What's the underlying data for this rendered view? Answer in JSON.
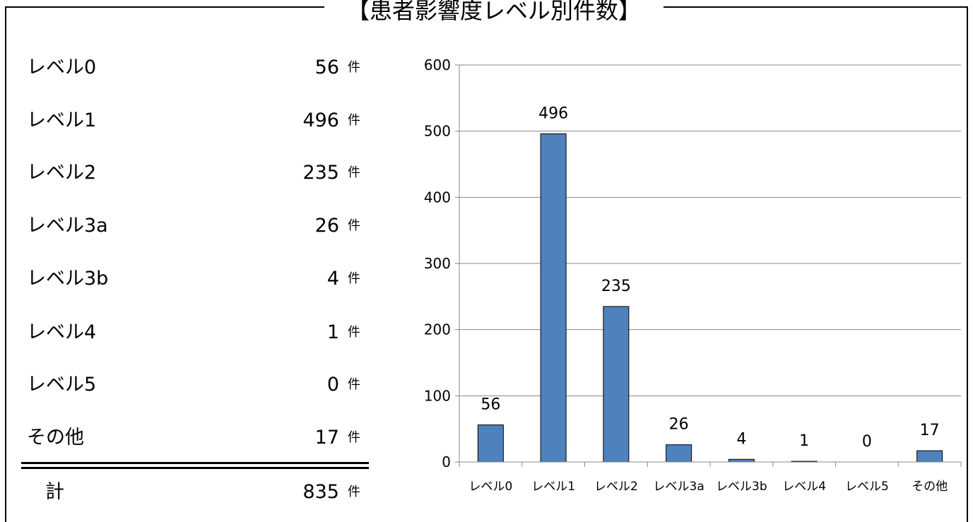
{
  "title": "【患者影響度レベル別件数】",
  "table": {
    "unit": "件",
    "rows": [
      {
        "label": "レベル0",
        "value": "56"
      },
      {
        "label": "レベル1",
        "value": "496"
      },
      {
        "label": "レベル2",
        "value": "235"
      },
      {
        "label": "レベル3a",
        "value": "26"
      },
      {
        "label": "レベル3b",
        "value": "4"
      },
      {
        "label": "レベル4",
        "value": "1"
      },
      {
        "label": "レベル5",
        "value": "0"
      },
      {
        "label": "その他",
        "value": "17"
      }
    ],
    "total_label": "計",
    "total_value": "835"
  },
  "chart_data": {
    "type": "bar",
    "title": "",
    "xlabel": "",
    "ylabel": "",
    "categories": [
      "レベル0",
      "レベル1",
      "レベル2",
      "レベル3a",
      "レベル3b",
      "レベル4",
      "レベル5",
      "その他"
    ],
    "values": [
      56,
      496,
      235,
      26,
      4,
      1,
      0,
      17
    ],
    "ylim": [
      0,
      600
    ],
    "yticks": [
      0,
      100,
      200,
      300,
      400,
      500,
      600
    ],
    "grid": true,
    "legend": "none",
    "bar_color": "#4f81bd",
    "data_labels": true
  }
}
